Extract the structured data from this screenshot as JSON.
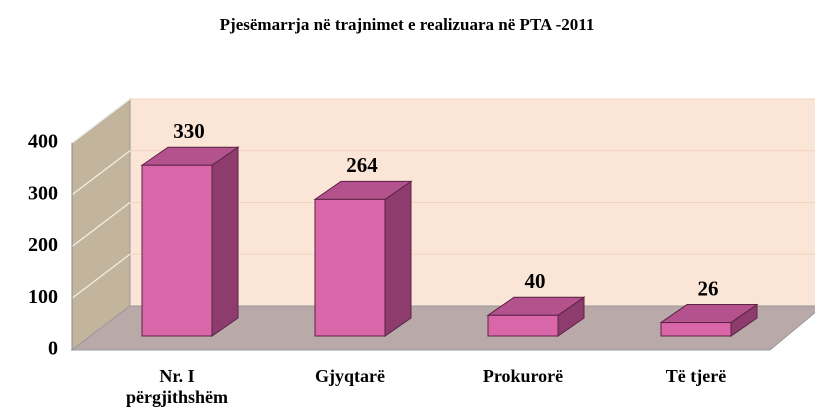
{
  "chart_data": {
    "type": "bar3d",
    "title": "Pjesëmarrja në trajnimet e realizuara në PTA -2011",
    "categories": [
      "Nr. I përgjithshëm",
      "Gjyqtarë",
      "Prokurorë",
      "Të tjerë"
    ],
    "values": [
      330,
      264,
      40,
      26
    ],
    "color": "#d966a8",
    "ylim": [
      0,
      400
    ],
    "yticks": [
      0,
      100,
      200,
      300,
      400
    ],
    "grid": true
  }
}
